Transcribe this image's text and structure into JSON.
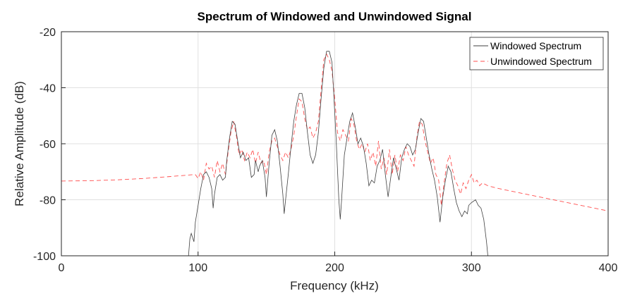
{
  "chart_data": {
    "type": "line",
    "title": "Spectrum of Windowed and Unwindowed Signal",
    "xlabel": "Frequency (kHz)",
    "ylabel": "Relative Amplitude (dB)",
    "xlim": [
      0,
      400
    ],
    "ylim": [
      -100,
      -20
    ],
    "xticks": [
      0,
      100,
      200,
      300,
      400
    ],
    "yticks": [
      -100,
      -80,
      -60,
      -40,
      -20
    ],
    "grid": true,
    "legend_position": "top-right",
    "series": [
      {
        "name": "Windowed Spectrum",
        "color": "#404040",
        "style": "solid",
        "points": [
          [
            93,
            -100
          ],
          [
            94,
            -94
          ],
          [
            95,
            -92
          ],
          [
            97,
            -95
          ],
          [
            98,
            -88
          ],
          [
            100,
            -82
          ],
          [
            102,
            -76
          ],
          [
            104,
            -71
          ],
          [
            106,
            -70
          ],
          [
            108,
            -72
          ],
          [
            110,
            -76
          ],
          [
            111,
            -83
          ],
          [
            112,
            -78
          ],
          [
            114,
            -72
          ],
          [
            116,
            -71
          ],
          [
            118,
            -73
          ],
          [
            120,
            -72
          ],
          [
            121,
            -66
          ],
          [
            123,
            -58
          ],
          [
            125,
            -52
          ],
          [
            127,
            -53
          ],
          [
            129,
            -59
          ],
          [
            131,
            -65
          ],
          [
            133,
            -63
          ],
          [
            135,
            -66
          ],
          [
            137,
            -65
          ],
          [
            139,
            -72
          ],
          [
            141,
            -71
          ],
          [
            142,
            -66
          ],
          [
            144,
            -70
          ],
          [
            145,
            -68
          ],
          [
            147,
            -66
          ],
          [
            149,
            -72
          ],
          [
            150,
            -79
          ],
          [
            152,
            -67
          ],
          [
            154,
            -57
          ],
          [
            156,
            -55
          ],
          [
            158,
            -59
          ],
          [
            160,
            -68
          ],
          [
            162,
            -78
          ],
          [
            163,
            -85
          ],
          [
            164,
            -80
          ],
          [
            166,
            -71
          ],
          [
            168,
            -61
          ],
          [
            170,
            -52
          ],
          [
            172,
            -46
          ],
          [
            174,
            -42
          ],
          [
            176,
            -42
          ],
          [
            178,
            -47
          ],
          [
            180,
            -56
          ],
          [
            182,
            -64
          ],
          [
            184,
            -67
          ],
          [
            186,
            -64
          ],
          [
            188,
            -56
          ],
          [
            190,
            -44
          ],
          [
            192,
            -33
          ],
          [
            194,
            -27
          ],
          [
            196,
            -27
          ],
          [
            198,
            -31
          ],
          [
            199,
            -40
          ],
          [
            201,
            -58
          ],
          [
            203,
            -80
          ],
          [
            204,
            -87
          ],
          [
            205,
            -80
          ],
          [
            207,
            -64
          ],
          [
            209,
            -58
          ],
          [
            211,
            -52
          ],
          [
            213,
            -49
          ],
          [
            215,
            -54
          ],
          [
            217,
            -60
          ],
          [
            219,
            -58
          ],
          [
            221,
            -61
          ],
          [
            223,
            -67
          ],
          [
            225,
            -75
          ],
          [
            227,
            -73
          ],
          [
            229,
            -74
          ],
          [
            231,
            -68
          ],
          [
            233,
            -66
          ],
          [
            235,
            -62
          ],
          [
            237,
            -71
          ],
          [
            239,
            -79
          ],
          [
            241,
            -72
          ],
          [
            243,
            -65
          ],
          [
            245,
            -69
          ],
          [
            247,
            -73
          ],
          [
            249,
            -65
          ],
          [
            251,
            -62
          ],
          [
            253,
            -60
          ],
          [
            255,
            -61
          ],
          [
            257,
            -64
          ],
          [
            259,
            -62
          ],
          [
            261,
            -56
          ],
          [
            263,
            -51
          ],
          [
            265,
            -52
          ],
          [
            267,
            -58
          ],
          [
            269,
            -64
          ],
          [
            271,
            -69
          ],
          [
            273,
            -73
          ],
          [
            275,
            -79
          ],
          [
            277,
            -88
          ],
          [
            279,
            -79
          ],
          [
            281,
            -73
          ],
          [
            283,
            -68
          ],
          [
            285,
            -70
          ],
          [
            287,
            -76
          ],
          [
            289,
            -81
          ],
          [
            291,
            -84
          ],
          [
            293,
            -86
          ],
          [
            295,
            -84
          ],
          [
            297,
            -85
          ],
          [
            298,
            -82
          ],
          [
            300,
            -81
          ],
          [
            303,
            -80
          ],
          [
            305,
            -82
          ],
          [
            307,
            -83
          ],
          [
            309,
            -87
          ],
          [
            311,
            -95
          ],
          [
            312,
            -100
          ]
        ]
      },
      {
        "name": "Unwindowed Spectrum",
        "color": "#ff4d4d",
        "style": "dashed",
        "points": [
          [
            0,
            -73.3
          ],
          [
            20,
            -73.2
          ],
          [
            40,
            -72.9
          ],
          [
            60,
            -72.4
          ],
          [
            80,
            -71.7
          ],
          [
            95,
            -71.1
          ],
          [
            98,
            -71
          ],
          [
            100,
            -72.4
          ],
          [
            102,
            -70
          ],
          [
            104,
            -73
          ],
          [
            106,
            -67
          ],
          [
            108,
            -69
          ],
          [
            110,
            -68
          ],
          [
            112,
            -72
          ],
          [
            114,
            -66
          ],
          [
            116,
            -70
          ],
          [
            118,
            -67
          ],
          [
            120,
            -71
          ],
          [
            122,
            -63
          ],
          [
            124,
            -56
          ],
          [
            126,
            -52
          ],
          [
            128,
            -57
          ],
          [
            130,
            -64
          ],
          [
            132,
            -62
          ],
          [
            134,
            -66
          ],
          [
            136,
            -63
          ],
          [
            138,
            -65
          ],
          [
            140,
            -62
          ],
          [
            142,
            -67
          ],
          [
            144,
            -63
          ],
          [
            146,
            -67
          ],
          [
            148,
            -66
          ],
          [
            150,
            -71
          ],
          [
            152,
            -63
          ],
          [
            154,
            -59
          ],
          [
            156,
            -58
          ],
          [
            158,
            -61
          ],
          [
            160,
            -64
          ],
          [
            162,
            -66
          ],
          [
            164,
            -63
          ],
          [
            166,
            -65
          ],
          [
            168,
            -62
          ],
          [
            170,
            -57
          ],
          [
            172,
            -50
          ],
          [
            174,
            -44
          ],
          [
            176,
            -45
          ],
          [
            178,
            -51
          ],
          [
            180,
            -55
          ],
          [
            182,
            -54
          ],
          [
            184,
            -58
          ],
          [
            186,
            -56
          ],
          [
            188,
            -52
          ],
          [
            190,
            -41
          ],
          [
            192,
            -30
          ],
          [
            194,
            -28
          ],
          [
            196,
            -30
          ],
          [
            198,
            -34
          ],
          [
            200,
            -44
          ],
          [
            202,
            -56
          ],
          [
            204,
            -59
          ],
          [
            206,
            -55
          ],
          [
            208,
            -57
          ],
          [
            210,
            -59
          ],
          [
            212,
            -51
          ],
          [
            214,
            -53
          ],
          [
            216,
            -59
          ],
          [
            218,
            -62
          ],
          [
            220,
            -60
          ],
          [
            222,
            -63
          ],
          [
            224,
            -60
          ],
          [
            226,
            -66
          ],
          [
            228,
            -63
          ],
          [
            230,
            -68
          ],
          [
            232,
            -59
          ],
          [
            234,
            -69
          ],
          [
            236,
            -65
          ],
          [
            238,
            -71
          ],
          [
            240,
            -62
          ],
          [
            242,
            -71
          ],
          [
            244,
            -64
          ],
          [
            246,
            -70
          ],
          [
            248,
            -64
          ],
          [
            250,
            -66
          ],
          [
            252,
            -61
          ],
          [
            254,
            -64
          ],
          [
            256,
            -66
          ],
          [
            258,
            -68
          ],
          [
            260,
            -58
          ],
          [
            262,
            -52
          ],
          [
            264,
            -53
          ],
          [
            266,
            -59
          ],
          [
            268,
            -63
          ],
          [
            270,
            -67
          ],
          [
            272,
            -65
          ],
          [
            274,
            -71
          ],
          [
            276,
            -73
          ],
          [
            278,
            -82
          ],
          [
            280,
            -74
          ],
          [
            282,
            -67
          ],
          [
            284,
            -64
          ],
          [
            286,
            -69
          ],
          [
            288,
            -73
          ],
          [
            290,
            -75
          ],
          [
            292,
            -78
          ],
          [
            294,
            -74
          ],
          [
            296,
            -76
          ],
          [
            298,
            -73
          ],
          [
            300,
            -71
          ],
          [
            302,
            -74
          ],
          [
            304,
            -73
          ],
          [
            306,
            -75
          ],
          [
            308,
            -74
          ],
          [
            312,
            -75
          ],
          [
            320,
            -76
          ],
          [
            340,
            -78
          ],
          [
            360,
            -80
          ],
          [
            380,
            -82
          ],
          [
            400,
            -84
          ]
        ]
      }
    ]
  }
}
